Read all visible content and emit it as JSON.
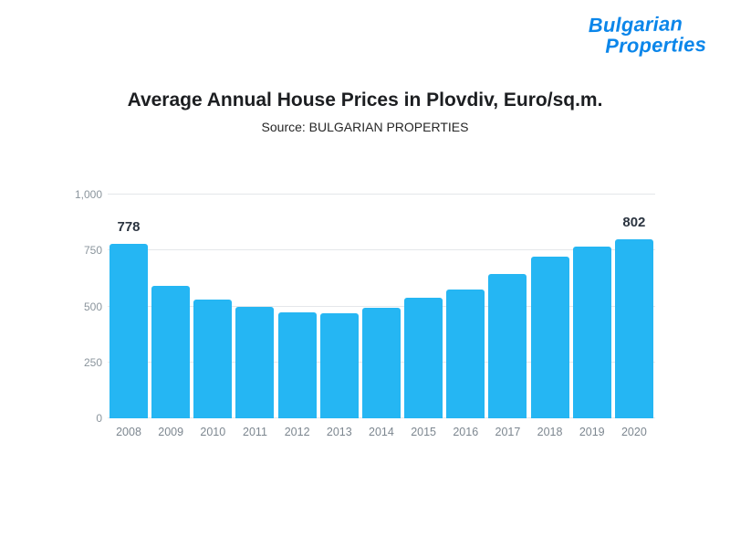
{
  "logo": {
    "line1": "Bulgarian",
    "line2": "Properties",
    "color": "#0b86ea"
  },
  "header": {
    "title": "Average Annual House Prices in Plovdiv, Euro/sq.m.",
    "subtitle": "Source: BULGARIAN PROPERTIES"
  },
  "chart_data": {
    "type": "bar",
    "title": "Average Annual House Prices in Plovdiv, Euro/sq.m.",
    "subtitle": "Source: BULGARIAN PROPERTIES",
    "categories": [
      "2008",
      "2009",
      "2010",
      "2011",
      "2012",
      "2013",
      "2014",
      "2015",
      "2016",
      "2017",
      "2018",
      "2019",
      "2020"
    ],
    "values": [
      778,
      590,
      530,
      497,
      473,
      470,
      492,
      537,
      577,
      643,
      722,
      766,
      802
    ],
    "data_labels": [
      "778",
      "802"
    ],
    "labeled_indices": [
      0,
      12
    ],
    "bar_color": "#25B6F3",
    "ylim": [
      0,
      1000
    ],
    "yticks": [
      0,
      250,
      500,
      750,
      1000
    ],
    "ytick_labels": [
      "0",
      "250",
      "500",
      "750",
      "1,000"
    ],
    "grid": true,
    "legend": "none",
    "xlabel": "",
    "ylabel": ""
  }
}
